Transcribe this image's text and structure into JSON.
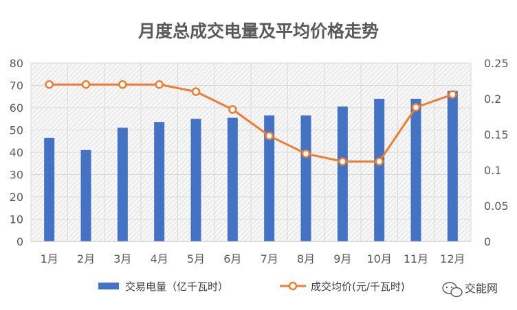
{
  "watermark": {
    "text": "交能网",
    "icon": "chat-bubble-icon"
  },
  "chart_data": {
    "type": "bar+line",
    "title": "月度总成交电量及平均价格走势",
    "categories": [
      "1月",
      "2月",
      "3月",
      "4月",
      "5月",
      "6月",
      "7月",
      "8月",
      "9月",
      "10月",
      "11月",
      "12月"
    ],
    "series": [
      {
        "name": "交易电量（亿千瓦时）",
        "type": "bar",
        "axis": "left",
        "color": "#4472C4",
        "values": [
          46.5,
          41,
          51,
          53.5,
          55,
          55.5,
          56.5,
          56.5,
          60.5,
          64,
          64,
          67.5
        ]
      },
      {
        "name": "成交均价(元/千瓦时)",
        "type": "line",
        "axis": "right",
        "color": "#ED7D31",
        "values": [
          0.22,
          0.22,
          0.22,
          0.22,
          0.21,
          0.185,
          0.148,
          0.123,
          0.112,
          0.112,
          0.188,
          0.206
        ]
      }
    ],
    "y_left": {
      "min": 0,
      "max": 80,
      "ticks": [
        "0",
        "10",
        "20",
        "30",
        "40",
        "50",
        "60",
        "70",
        "80"
      ]
    },
    "y_right": {
      "min": 0,
      "max": 0.25,
      "ticks": [
        "0",
        "0.05",
        "0.1",
        "0.15",
        "0.2",
        "0.25"
      ]
    },
    "grid": true,
    "legend": "bottom"
  }
}
